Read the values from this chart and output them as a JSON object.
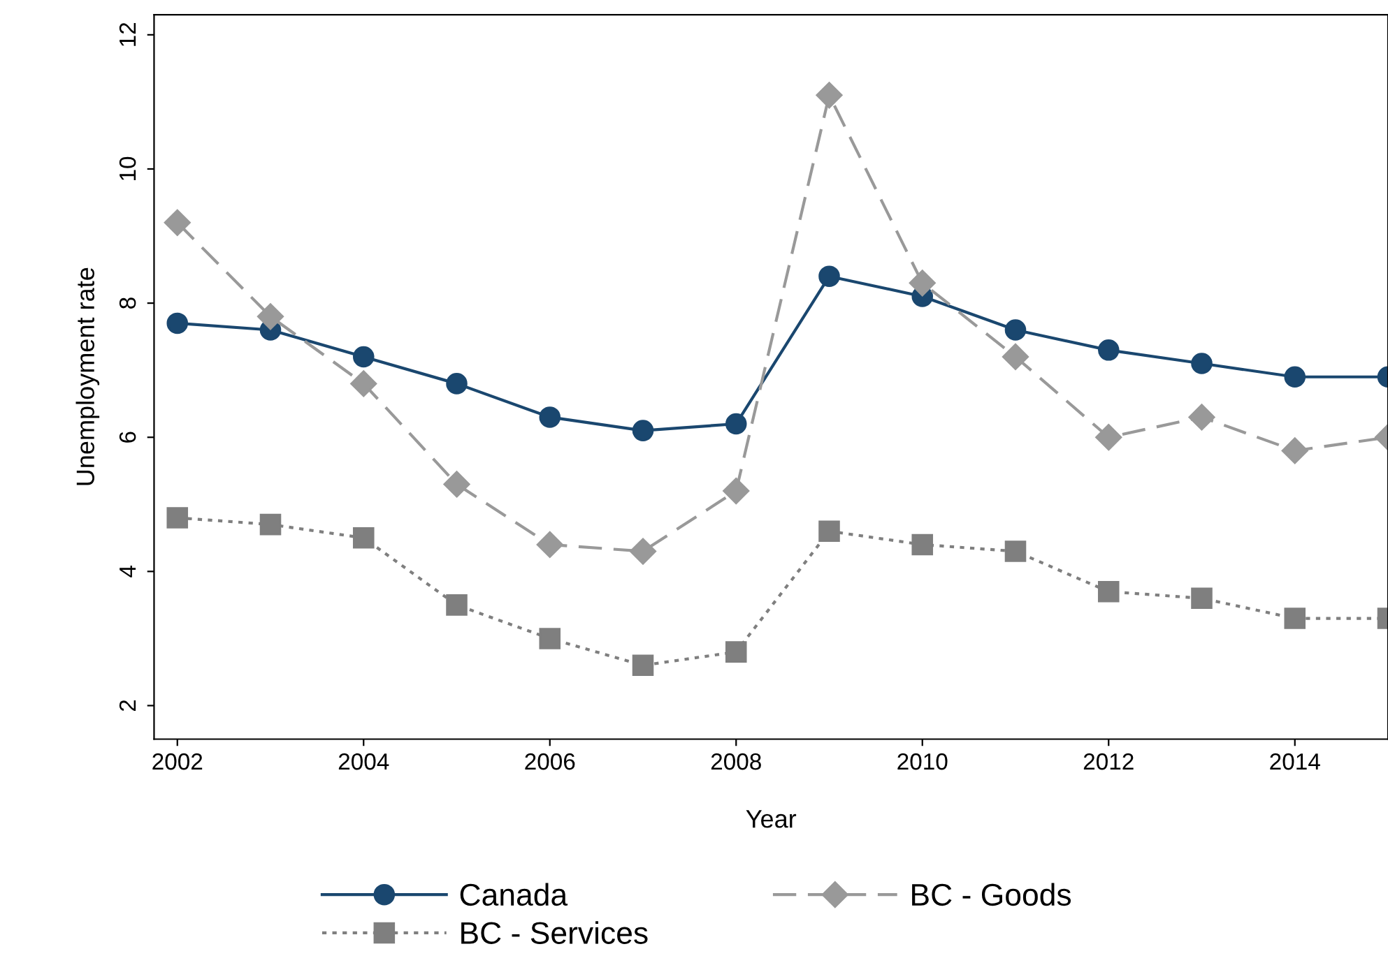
{
  "chart_data": {
    "type": "line",
    "xlabel": "Year",
    "ylabel": "Unemployment rate",
    "x": [
      2002,
      2003,
      2004,
      2005,
      2006,
      2007,
      2008,
      2009,
      2010,
      2011,
      2012,
      2013,
      2014,
      2015
    ],
    "series": [
      {
        "name": "Canada",
        "color": "#1a476f",
        "marker": "circle",
        "line_style": "solid",
        "values": [
          7.7,
          7.6,
          7.2,
          6.8,
          6.3,
          6.1,
          6.2,
          8.4,
          8.1,
          7.6,
          7.3,
          7.1,
          6.9,
          6.9
        ]
      },
      {
        "name": "BC - Goods",
        "color": "#999999",
        "marker": "diamond",
        "line_style": "dashed",
        "values": [
          9.2,
          7.8,
          6.8,
          5.3,
          4.4,
          4.3,
          5.2,
          11.1,
          8.3,
          7.2,
          6.0,
          6.3,
          5.8,
          6.0
        ]
      },
      {
        "name": "BC - Services",
        "color": "#7f7f7f",
        "marker": "square",
        "line_style": "dotted",
        "values": [
          4.8,
          4.7,
          4.5,
          3.5,
          3.0,
          2.6,
          2.8,
          4.6,
          4.4,
          4.3,
          3.7,
          3.6,
          3.3,
          3.3
        ]
      }
    ],
    "xlim": [
      2001.75,
      2015
    ],
    "xticks": [
      2002,
      2004,
      2006,
      2008,
      2010,
      2012,
      2014
    ],
    "ylim": [
      1.5,
      12.3
    ],
    "yticks": [
      2,
      4,
      6,
      8,
      10,
      12
    ],
    "grid": false,
    "legend": "bottom"
  }
}
